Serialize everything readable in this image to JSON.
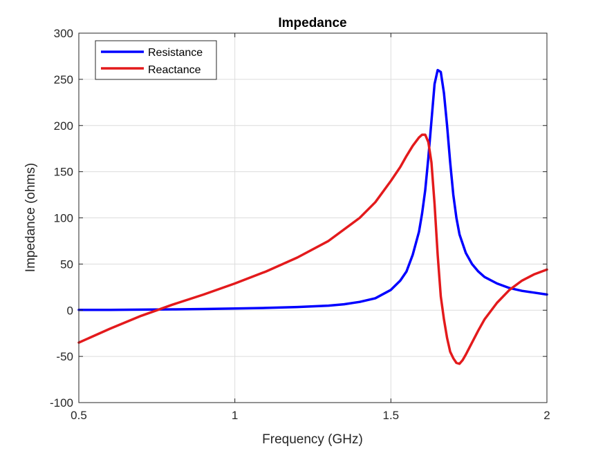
{
  "chart_data": {
    "type": "line",
    "title": "Impedance",
    "xlabel": "Frequency (GHz)",
    "ylabel": "Impedance (ohms)",
    "xlim": [
      0.5,
      2
    ],
    "ylim": [
      -100,
      300
    ],
    "xticks": [
      0.5,
      1,
      1.5,
      2
    ],
    "xtick_labels": [
      "0.5",
      "1",
      "1.5",
      "2"
    ],
    "yticks": [
      -100,
      -50,
      0,
      50,
      100,
      150,
      200,
      250,
      300
    ],
    "ytick_labels": [
      "-100",
      "-50",
      "0",
      "50",
      "100",
      "150",
      "200",
      "250",
      "300"
    ],
    "grid": true,
    "legend_position": "top-left",
    "series": [
      {
        "name": "Resistance",
        "color": "#0000ff",
        "x": [
          0.5,
          0.6,
          0.7,
          0.8,
          0.9,
          1.0,
          1.1,
          1.2,
          1.3,
          1.35,
          1.4,
          1.45,
          1.5,
          1.53,
          1.55,
          1.57,
          1.59,
          1.6,
          1.61,
          1.62,
          1.63,
          1.64,
          1.65,
          1.66,
          1.67,
          1.68,
          1.69,
          1.7,
          1.71,
          1.72,
          1.74,
          1.76,
          1.78,
          1.8,
          1.84,
          1.88,
          1.92,
          1.96,
          2.0
        ],
        "y": [
          0.3,
          0.4,
          0.6,
          0.9,
          1.3,
          1.8,
          2.5,
          3.5,
          5,
          6.5,
          9,
          13,
          22,
          32,
          42,
          60,
          85,
          105,
          130,
          165,
          205,
          245,
          260,
          258,
          235,
          200,
          160,
          125,
          100,
          82,
          62,
          50,
          42,
          36,
          29,
          24,
          21,
          19,
          17
        ]
      },
      {
        "name": "Reactance",
        "color": "#e31a1c",
        "x": [
          0.5,
          0.6,
          0.7,
          0.75,
          0.8,
          0.9,
          1.0,
          1.1,
          1.2,
          1.3,
          1.4,
          1.45,
          1.5,
          1.53,
          1.55,
          1.57,
          1.59,
          1.6,
          1.61,
          1.62,
          1.63,
          1.64,
          1.65,
          1.66,
          1.67,
          1.68,
          1.69,
          1.7,
          1.71,
          1.72,
          1.73,
          1.74,
          1.76,
          1.78,
          1.8,
          1.84,
          1.88,
          1.92,
          1.96,
          2.0
        ],
        "y": [
          -35,
          -20,
          -6,
          0,
          6,
          17,
          29,
          42,
          57,
          75,
          100,
          117,
          140,
          155,
          167,
          178,
          187,
          190,
          190,
          182,
          160,
          115,
          60,
          15,
          -10,
          -30,
          -45,
          -52,
          -57,
          -58,
          -54,
          -48,
          -35,
          -22,
          -10,
          8,
          22,
          32,
          39,
          44
        ]
      }
    ]
  }
}
